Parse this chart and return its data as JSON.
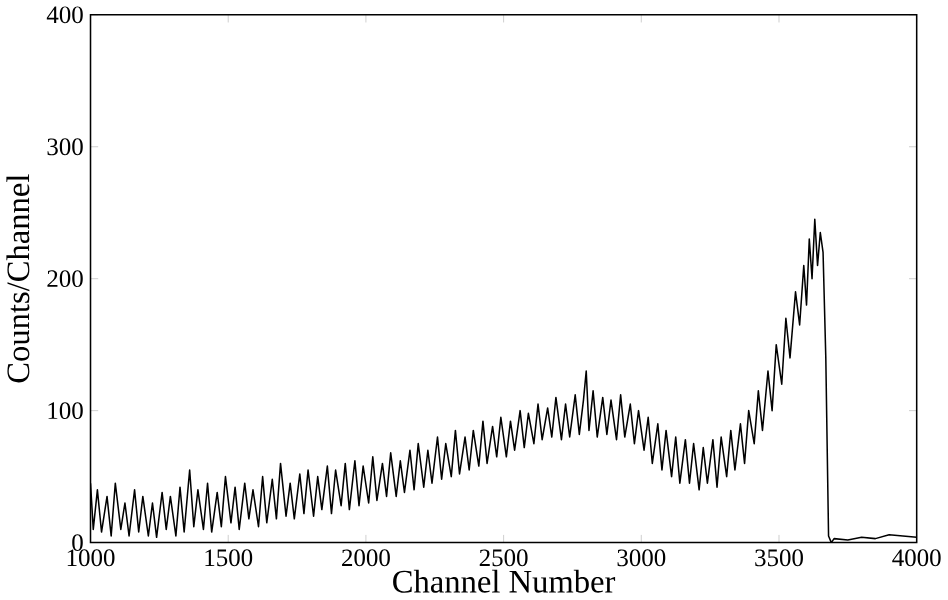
{
  "chart_data": {
    "type": "line",
    "xlabel": "Channel Number",
    "ylabel": "Counts/Channel",
    "xlim": [
      1000,
      4000
    ],
    "ylim": [
      0,
      400
    ],
    "xticks": [
      1000,
      1500,
      2000,
      2500,
      3000,
      3500,
      4000
    ],
    "yticks": [
      0,
      100,
      200,
      300,
      400
    ],
    "color": "#000000",
    "grid": false,
    "marker": "none",
    "line_style": "solid",
    "x": [
      1000,
      1010,
      1025,
      1040,
      1060,
      1075,
      1090,
      1110,
      1125,
      1140,
      1160,
      1175,
      1190,
      1210,
      1225,
      1240,
      1260,
      1275,
      1290,
      1310,
      1325,
      1340,
      1360,
      1375,
      1390,
      1410,
      1425,
      1440,
      1460,
      1475,
      1490,
      1510,
      1525,
      1540,
      1560,
      1575,
      1590,
      1610,
      1625,
      1640,
      1660,
      1675,
      1690,
      1710,
      1725,
      1740,
      1760,
      1775,
      1790,
      1810,
      1825,
      1840,
      1860,
      1875,
      1890,
      1910,
      1925,
      1940,
      1960,
      1975,
      1990,
      2010,
      2025,
      2040,
      2060,
      2075,
      2090,
      2110,
      2125,
      2140,
      2160,
      2175,
      2190,
      2210,
      2225,
      2240,
      2260,
      2275,
      2290,
      2310,
      2325,
      2340,
      2360,
      2375,
      2390,
      2410,
      2425,
      2440,
      2460,
      2475,
      2490,
      2510,
      2525,
      2540,
      2560,
      2575,
      2590,
      2610,
      2625,
      2640,
      2660,
      2675,
      2690,
      2710,
      2725,
      2740,
      2760,
      2775,
      2790,
      2800,
      2810,
      2825,
      2840,
      2860,
      2875,
      2890,
      2910,
      2925,
      2940,
      2960,
      2975,
      2990,
      3010,
      3025,
      3040,
      3060,
      3075,
      3090,
      3110,
      3125,
      3140,
      3160,
      3175,
      3190,
      3210,
      3225,
      3240,
      3260,
      3275,
      3290,
      3310,
      3325,
      3340,
      3360,
      3375,
      3390,
      3410,
      3425,
      3440,
      3460,
      3475,
      3490,
      3510,
      3525,
      3540,
      3560,
      3575,
      3590,
      3600,
      3610,
      3620,
      3630,
      3640,
      3650,
      3660,
      3670,
      3680,
      3690,
      3700,
      3750,
      3800,
      3850,
      3900,
      3950,
      4000
    ],
    "values": [
      45,
      10,
      40,
      8,
      35,
      5,
      45,
      10,
      30,
      5,
      40,
      8,
      35,
      5,
      30,
      4,
      38,
      10,
      35,
      5,
      42,
      8,
      55,
      12,
      40,
      10,
      45,
      8,
      38,
      12,
      50,
      15,
      42,
      10,
      45,
      18,
      40,
      12,
      50,
      15,
      48,
      18,
      60,
      20,
      45,
      18,
      52,
      22,
      55,
      20,
      50,
      25,
      58,
      22,
      55,
      28,
      60,
      25,
      62,
      28,
      58,
      30,
      65,
      32,
      60,
      35,
      68,
      35,
      62,
      38,
      70,
      40,
      75,
      42,
      70,
      45,
      80,
      48,
      75,
      50,
      85,
      52,
      80,
      55,
      85,
      58,
      92,
      60,
      88,
      65,
      95,
      65,
      92,
      70,
      100,
      72,
      98,
      75,
      105,
      78,
      102,
      80,
      110,
      78,
      105,
      80,
      112,
      82,
      108,
      130,
      85,
      115,
      80,
      110,
      82,
      108,
      78,
      112,
      80,
      105,
      75,
      100,
      70,
      95,
      60,
      90,
      55,
      85,
      50,
      80,
      45,
      78,
      45,
      75,
      40,
      72,
      45,
      78,
      42,
      80,
      50,
      85,
      55,
      90,
      60,
      100,
      75,
      115,
      85,
      130,
      100,
      150,
      120,
      170,
      140,
      190,
      165,
      210,
      180,
      230,
      200,
      245,
      210,
      235,
      220,
      140,
      5,
      0,
      3,
      2,
      4,
      3,
      6,
      5,
      4
    ]
  }
}
